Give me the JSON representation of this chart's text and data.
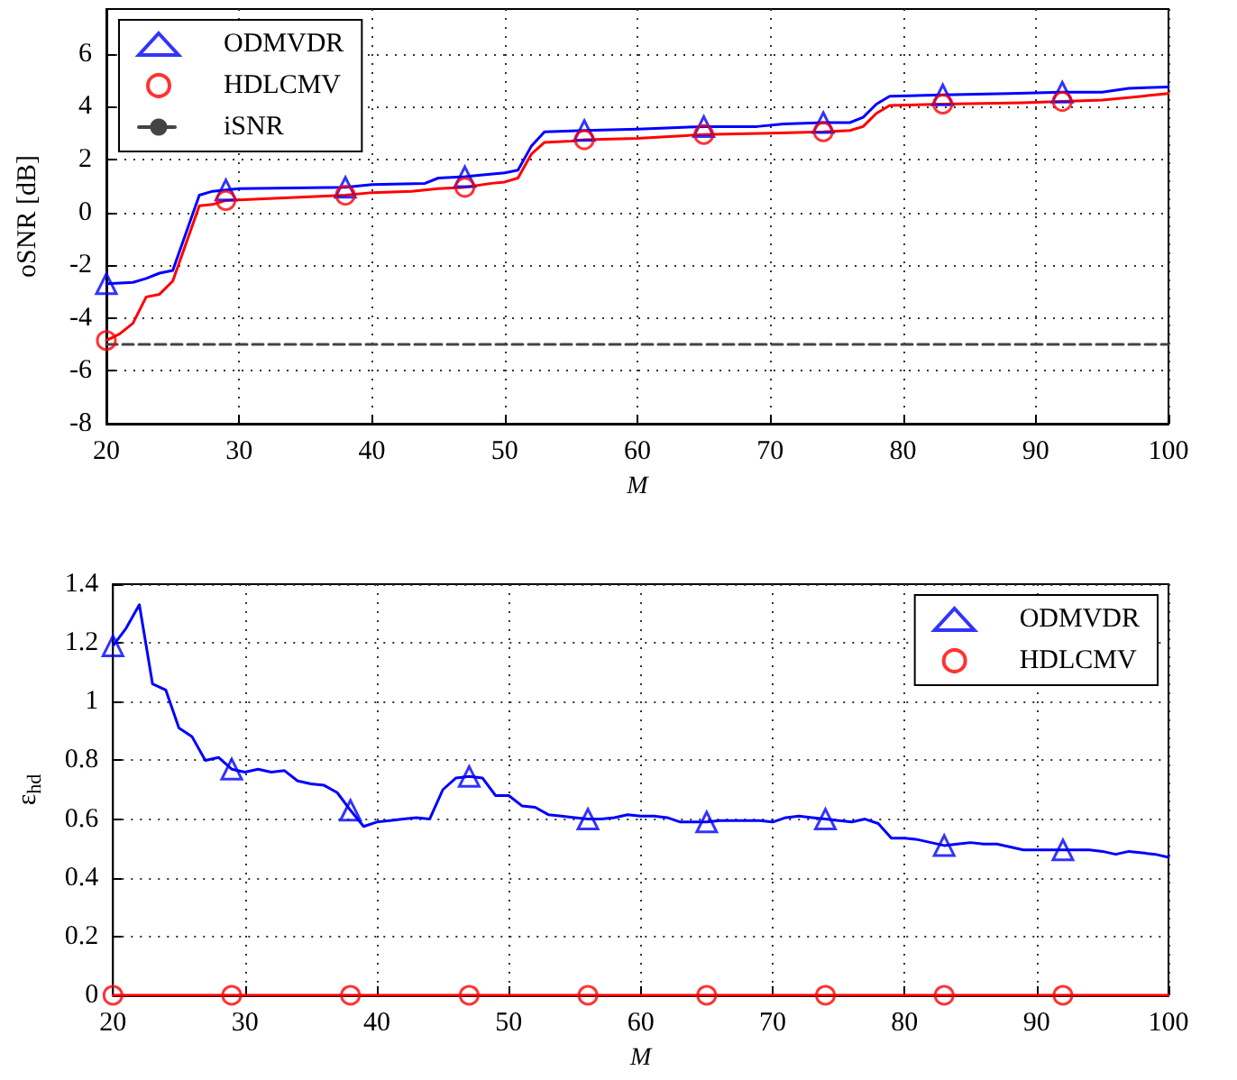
{
  "chart_data": [
    {
      "type": "line",
      "xlabel": "M",
      "ylabel": "oSNR [dB]",
      "xlim": [
        20,
        100
      ],
      "xticks": [
        20,
        30,
        40,
        50,
        60,
        70,
        80,
        90,
        100
      ],
      "ylim": [
        -8,
        7.7
      ],
      "yticks": [
        -8,
        -6,
        -4,
        -2,
        0,
        2,
        4,
        6
      ],
      "grid": true,
      "legend": "top left",
      "series": [
        {
          "name": "ODMVDR",
          "type": "scatter",
          "marker": "triangle",
          "color": "#0000ff",
          "x": [
            20,
            29,
            38,
            47,
            56,
            65,
            74,
            83,
            92
          ],
          "values": [
            -2.7,
            0.85,
            0.95,
            1.35,
            3.1,
            3.25,
            3.4,
            4.45,
            4.55
          ]
        },
        {
          "type": "line",
          "marker": "none",
          "line_style": "solid",
          "color": "#0000ff",
          "x": [
            20,
            22,
            23,
            24,
            25,
            27,
            28,
            29,
            30,
            38,
            40,
            44,
            45,
            47,
            48,
            50,
            51,
            52,
            53,
            56,
            60,
            65,
            69,
            71,
            74,
            76,
            77,
            78,
            79,
            83,
            88,
            92,
            95,
            97,
            100
          ],
          "values": [
            -2.7,
            -2.65,
            -2.5,
            -2.3,
            -2.2,
            0.65,
            0.8,
            0.85,
            0.9,
            0.95,
            1.05,
            1.1,
            1.3,
            1.35,
            1.4,
            1.5,
            1.6,
            2.5,
            3.05,
            3.1,
            3.15,
            3.25,
            3.25,
            3.35,
            3.4,
            3.4,
            3.6,
            4.1,
            4.4,
            4.45,
            4.5,
            4.55,
            4.55,
            4.7,
            4.75
          ]
        },
        {
          "name": "HDLCMV",
          "type": "scatter",
          "marker": "circle",
          "color": "#ff0000",
          "x": [
            20,
            29,
            38,
            47,
            56,
            65,
            74,
            83,
            92
          ],
          "values": [
            -4.85,
            0.45,
            0.65,
            0.95,
            2.75,
            2.95,
            3.05,
            4.1,
            4.2
          ]
        },
        {
          "type": "line",
          "marker": "none",
          "line_style": "solid",
          "color": "#ff0000",
          "x": [
            20,
            21,
            22,
            23,
            24,
            25,
            27,
            28,
            29,
            38,
            40,
            43,
            45,
            47,
            49,
            50,
            51,
            52,
            53,
            55,
            56,
            60,
            65,
            70,
            74,
            76,
            77,
            78,
            79,
            83,
            89,
            92,
            95,
            97,
            100
          ],
          "values": [
            -4.85,
            -4.6,
            -4.2,
            -3.2,
            -3.1,
            -2.6,
            0.25,
            0.3,
            0.45,
            0.65,
            0.75,
            0.8,
            0.9,
            0.95,
            1.1,
            1.15,
            1.3,
            2.2,
            2.65,
            2.7,
            2.75,
            2.8,
            2.95,
            3.0,
            3.05,
            3.1,
            3.25,
            3.75,
            4.05,
            4.1,
            4.15,
            4.2,
            4.25,
            4.35,
            4.5
          ]
        },
        {
          "name": "iSNR",
          "type": "line",
          "marker": "none",
          "line_style": "dashed",
          "color": "#444444",
          "x": [
            20,
            100
          ],
          "values": [
            -5,
            -5
          ]
        }
      ]
    },
    {
      "type": "line",
      "xlabel": "M",
      "ylabel": "ε$_{hd}$",
      "xlim": [
        20,
        100
      ],
      "xticks": [
        20,
        30,
        40,
        50,
        60,
        70,
        80,
        90,
        100
      ],
      "ylim": [
        0,
        1.4
      ],
      "yticks": [
        0,
        0.2,
        0.4,
        0.6,
        0.8,
        1,
        1.2,
        1.4
      ],
      "grid": true,
      "legend": "top right",
      "series": [
        {
          "name": "ODMVDR",
          "type": "scatter",
          "marker": "triangle",
          "color": "#0000ff",
          "x": [
            20,
            29,
            38,
            47,
            56,
            65,
            74,
            83,
            92
          ],
          "values": [
            1.19,
            0.77,
            0.63,
            0.745,
            0.6,
            0.59,
            0.6,
            0.51,
            0.495
          ]
        },
        {
          "type": "line",
          "marker": "none",
          "line_style": "solid",
          "color": "#0000ff",
          "x": [
            20,
            21,
            22,
            23,
            24,
            25,
            26,
            27,
            28,
            29,
            30,
            31,
            32,
            33,
            34,
            35,
            36,
            37,
            38,
            39,
            40,
            41,
            42,
            43,
            44,
            45,
            46,
            47,
            48,
            49,
            50,
            51,
            52,
            53,
            54,
            55,
            56,
            57,
            58,
            59,
            60,
            61,
            62,
            63,
            64,
            65,
            66,
            67,
            68,
            69,
            70,
            71,
            72,
            73,
            74,
            75,
            76,
            77,
            78,
            79,
            80,
            81,
            82,
            83,
            84,
            85,
            86,
            87,
            88,
            89,
            90,
            91,
            92,
            93,
            94,
            95,
            96,
            97,
            98,
            99,
            100
          ],
          "values": [
            1.19,
            1.25,
            1.33,
            1.06,
            1.04,
            0.91,
            0.88,
            0.8,
            0.81,
            0.77,
            0.76,
            0.77,
            0.76,
            0.765,
            0.73,
            0.72,
            0.715,
            0.69,
            0.63,
            0.575,
            0.59,
            0.595,
            0.6,
            0.605,
            0.6,
            0.7,
            0.74,
            0.745,
            0.74,
            0.68,
            0.68,
            0.645,
            0.64,
            0.615,
            0.61,
            0.605,
            0.6,
            0.6,
            0.605,
            0.615,
            0.61,
            0.61,
            0.605,
            0.59,
            0.59,
            0.59,
            0.595,
            0.595,
            0.595,
            0.595,
            0.59,
            0.605,
            0.61,
            0.605,
            0.6,
            0.595,
            0.59,
            0.6,
            0.585,
            0.535,
            0.535,
            0.53,
            0.52,
            0.51,
            0.515,
            0.52,
            0.515,
            0.515,
            0.505,
            0.495,
            0.495,
            0.495,
            0.495,
            0.495,
            0.495,
            0.49,
            0.48,
            0.49,
            0.485,
            0.48,
            0.47
          ]
        },
        {
          "name": "HDLCMV",
          "type": "scatter",
          "marker": "circle",
          "color": "#ff0000",
          "x": [
            20,
            29,
            38,
            47,
            56,
            65,
            74,
            83,
            92
          ],
          "values": [
            0,
            0,
            0,
            0,
            0,
            0,
            0,
            0,
            0
          ]
        },
        {
          "type": "line",
          "marker": "none",
          "line_style": "solid",
          "color": "#ff0000",
          "x": [
            20,
            100
          ],
          "values": [
            0,
            0
          ]
        }
      ]
    }
  ]
}
